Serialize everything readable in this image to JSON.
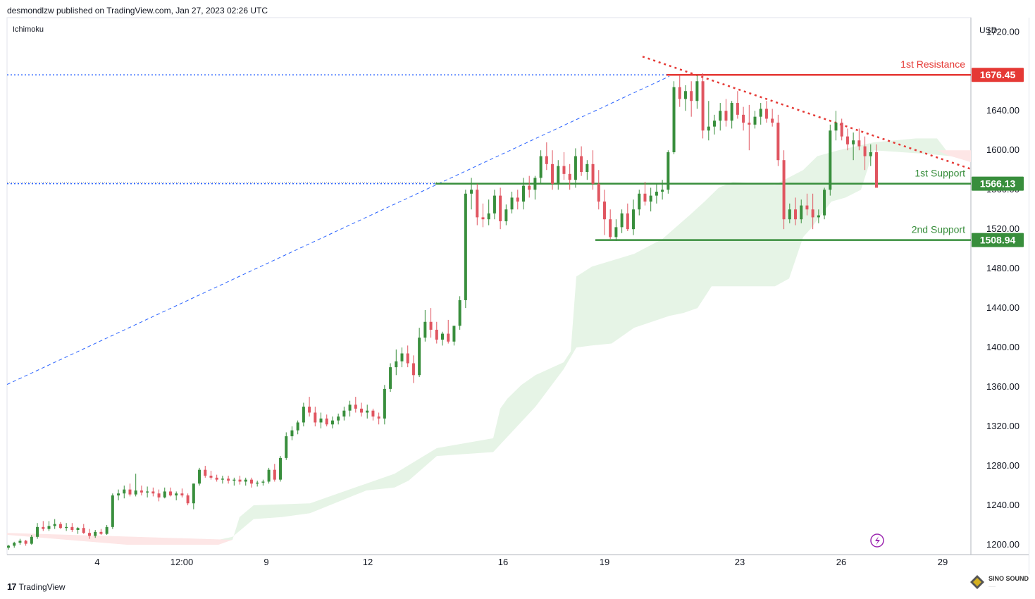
{
  "header": {
    "publisher": "desmondlzw published on TradingView.com, Jan 27, 2023 02:26 UTC"
  },
  "indicator": {
    "name": "Ichimoku"
  },
  "footer": {
    "brand": "TradingView",
    "watermark": "SINO SOUND"
  },
  "colors": {
    "up": "#388e3c",
    "down": "#e05560",
    "resistance": "#e53935",
    "support": "#388e3c",
    "trendline": "#2962ff",
    "cloud_bull": "#e6f4e6",
    "cloud_bear": "#fde6e6"
  },
  "chart_data": {
    "type": "candlestick",
    "symbol_currency": "USD",
    "ylim": [
      1190,
      1735
    ],
    "y_ticks": [
      1720.0,
      1680.0,
      1640.0,
      1600.0,
      1560.0,
      1520.0,
      1480.0,
      1440.0,
      1400.0,
      1360.0,
      1320.0,
      1280.0,
      1240.0,
      1200.0
    ],
    "x_tick_labels": [
      "4",
      "12:00",
      "9",
      "12",
      "16",
      "19",
      "23",
      "26",
      "29"
    ],
    "levels": [
      {
        "name": "1st Resistance",
        "value": 1676.45,
        "color": "#e53935"
      },
      {
        "name": "1st Support",
        "value": 1566.13,
        "color": "#388e3c"
      },
      {
        "name": "2nd Support",
        "value": 1508.94,
        "color": "#388e3c"
      }
    ],
    "candles": [
      [
        1197,
        1200,
        1195,
        1199
      ],
      [
        1199,
        1203,
        1197,
        1202
      ],
      [
        1202,
        1206,
        1200,
        1204
      ],
      [
        1204,
        1205,
        1199,
        1201
      ],
      [
        1201,
        1210,
        1200,
        1208
      ],
      [
        1208,
        1222,
        1206,
        1218
      ],
      [
        1218,
        1224,
        1214,
        1216
      ],
      [
        1216,
        1224,
        1214,
        1219
      ],
      [
        1219,
        1226,
        1216,
        1221
      ],
      [
        1221,
        1223,
        1216,
        1217
      ],
      [
        1217,
        1222,
        1214,
        1218
      ],
      [
        1218,
        1222,
        1213,
        1215
      ],
      [
        1215,
        1218,
        1211,
        1217
      ],
      [
        1217,
        1221,
        1211,
        1212
      ],
      [
        1212,
        1216,
        1206,
        1209
      ],
      [
        1209,
        1215,
        1207,
        1213
      ],
      [
        1213,
        1216,
        1210,
        1211
      ],
      [
        1211,
        1220,
        1210,
        1218
      ],
      [
        1218,
        1252,
        1216,
        1250
      ],
      [
        1250,
        1256,
        1245,
        1252
      ],
      [
        1252,
        1260,
        1247,
        1256
      ],
      [
        1256,
        1262,
        1249,
        1251
      ],
      [
        1251,
        1272,
        1249,
        1255
      ],
      [
        1255,
        1260,
        1250,
        1253
      ],
      [
        1253,
        1259,
        1248,
        1254
      ],
      [
        1254,
        1258,
        1249,
        1252
      ],
      [
        1252,
        1256,
        1244,
        1248
      ],
      [
        1248,
        1258,
        1247,
        1254
      ],
      [
        1254,
        1258,
        1249,
        1250
      ],
      [
        1250,
        1254,
        1245,
        1252
      ],
      [
        1252,
        1257,
        1248,
        1250
      ],
      [
        1250,
        1252,
        1240,
        1242
      ],
      [
        1242,
        1262,
        1236,
        1262
      ],
      [
        1262,
        1278,
        1260,
        1276
      ],
      [
        1276,
        1280,
        1268,
        1270
      ],
      [
        1270,
        1275,
        1266,
        1268
      ],
      [
        1268,
        1271,
        1264,
        1266
      ],
      [
        1266,
        1270,
        1262,
        1267
      ],
      [
        1267,
        1270,
        1262,
        1265
      ],
      [
        1265,
        1268,
        1260,
        1266
      ],
      [
        1266,
        1270,
        1261,
        1264
      ],
      [
        1264,
        1268,
        1260,
        1266
      ],
      [
        1266,
        1268,
        1258,
        1262
      ],
      [
        1262,
        1265,
        1259,
        1263
      ],
      [
        1263,
        1266,
        1260,
        1264
      ],
      [
        1264,
        1278,
        1262,
        1276
      ],
      [
        1276,
        1282,
        1264,
        1266
      ],
      [
        1266,
        1290,
        1264,
        1288
      ],
      [
        1288,
        1314,
        1286,
        1310
      ],
      [
        1310,
        1320,
        1306,
        1316
      ],
      [
        1316,
        1326,
        1312,
        1324
      ],
      [
        1324,
        1344,
        1320,
        1340
      ],
      [
        1340,
        1350,
        1330,
        1334
      ],
      [
        1334,
        1340,
        1320,
        1324
      ],
      [
        1324,
        1334,
        1318,
        1328
      ],
      [
        1328,
        1332,
        1320,
        1322
      ],
      [
        1322,
        1330,
        1318,
        1326
      ],
      [
        1326,
        1333,
        1322,
        1330
      ],
      [
        1330,
        1340,
        1326,
        1336
      ],
      [
        1336,
        1346,
        1330,
        1342
      ],
      [
        1342,
        1350,
        1334,
        1338
      ],
      [
        1338,
        1344,
        1330,
        1334
      ],
      [
        1334,
        1342,
        1328,
        1336
      ],
      [
        1336,
        1338,
        1326,
        1330
      ],
      [
        1330,
        1334,
        1322,
        1328
      ],
      [
        1328,
        1362,
        1322,
        1358
      ],
      [
        1358,
        1384,
        1355,
        1380
      ],
      [
        1380,
        1398,
        1372,
        1386
      ],
      [
        1386,
        1400,
        1380,
        1394
      ],
      [
        1394,
        1402,
        1380,
        1384
      ],
      [
        1384,
        1392,
        1364,
        1372
      ],
      [
        1372,
        1420,
        1370,
        1410
      ],
      [
        1410,
        1438,
        1406,
        1426
      ],
      [
        1426,
        1440,
        1410,
        1418
      ],
      [
        1418,
        1426,
        1404,
        1408
      ],
      [
        1408,
        1416,
        1402,
        1414
      ],
      [
        1414,
        1428,
        1404,
        1406
      ],
      [
        1406,
        1422,
        1402,
        1422
      ],
      [
        1422,
        1452,
        1418,
        1448
      ],
      [
        1448,
        1560,
        1440,
        1556
      ],
      [
        1556,
        1572,
        1540,
        1560
      ],
      [
        1560,
        1566,
        1524,
        1532
      ],
      [
        1532,
        1546,
        1522,
        1530
      ],
      [
        1530,
        1550,
        1524,
        1536
      ],
      [
        1536,
        1560,
        1530,
        1554
      ],
      [
        1554,
        1562,
        1520,
        1528
      ],
      [
        1528,
        1545,
        1524,
        1540
      ],
      [
        1540,
        1558,
        1536,
        1552
      ],
      [
        1552,
        1560,
        1540,
        1548
      ],
      [
        1548,
        1572,
        1540,
        1564
      ],
      [
        1564,
        1574,
        1552,
        1560
      ],
      [
        1560,
        1574,
        1550,
        1572
      ],
      [
        1572,
        1600,
        1566,
        1594
      ],
      [
        1594,
        1608,
        1580,
        1586
      ],
      [
        1586,
        1600,
        1560,
        1566
      ],
      [
        1566,
        1590,
        1560,
        1584
      ],
      [
        1584,
        1598,
        1570,
        1576
      ],
      [
        1576,
        1586,
        1560,
        1570
      ],
      [
        1570,
        1602,
        1562,
        1594
      ],
      [
        1594,
        1604,
        1574,
        1578
      ],
      [
        1578,
        1590,
        1570,
        1586
      ],
      [
        1586,
        1600,
        1560,
        1566
      ],
      [
        1566,
        1580,
        1540,
        1548
      ],
      [
        1548,
        1560,
        1514,
        1530
      ],
      [
        1530,
        1540,
        1510,
        1512
      ],
      [
        1512,
        1530,
        1508,
        1522
      ],
      [
        1522,
        1540,
        1516,
        1536
      ],
      [
        1536,
        1546,
        1518,
        1520
      ],
      [
        1520,
        1550,
        1514,
        1540
      ],
      [
        1540,
        1560,
        1534,
        1556
      ],
      [
        1556,
        1568,
        1544,
        1548
      ],
      [
        1548,
        1562,
        1538,
        1554
      ],
      [
        1554,
        1566,
        1546,
        1558
      ],
      [
        1558,
        1570,
        1550,
        1560
      ],
      [
        1560,
        1600,
        1556,
        1598
      ],
      [
        1598,
        1670,
        1596,
        1664
      ],
      [
        1664,
        1676,
        1644,
        1652
      ],
      [
        1652,
        1666,
        1640,
        1660
      ],
      [
        1660,
        1670,
        1634,
        1650
      ],
      [
        1650,
        1676,
        1642,
        1670
      ],
      [
        1670,
        1678,
        1612,
        1620
      ],
      [
        1620,
        1650,
        1610,
        1624
      ],
      [
        1624,
        1636,
        1616,
        1630
      ],
      [
        1630,
        1648,
        1620,
        1640
      ],
      [
        1640,
        1652,
        1624,
        1630
      ],
      [
        1630,
        1650,
        1622,
        1648
      ],
      [
        1648,
        1660,
        1632,
        1636
      ],
      [
        1636,
        1644,
        1620,
        1628
      ],
      [
        1628,
        1646,
        1600,
        1626
      ],
      [
        1626,
        1640,
        1622,
        1634
      ],
      [
        1634,
        1648,
        1626,
        1642
      ],
      [
        1642,
        1650,
        1628,
        1632
      ],
      [
        1632,
        1642,
        1624,
        1628
      ],
      [
        1628,
        1636,
        1584,
        1590
      ],
      [
        1590,
        1600,
        1520,
        1530
      ],
      [
        1530,
        1546,
        1526,
        1540
      ],
      [
        1540,
        1552,
        1524,
        1530
      ],
      [
        1530,
        1550,
        1526,
        1544
      ],
      [
        1544,
        1556,
        1534,
        1540
      ],
      [
        1540,
        1556,
        1520,
        1532
      ],
      [
        1532,
        1540,
        1526,
        1534
      ],
      [
        1534,
        1562,
        1530,
        1560
      ],
      [
        1560,
        1626,
        1554,
        1620
      ],
      [
        1620,
        1640,
        1610,
        1628
      ],
      [
        1628,
        1632,
        1610,
        1614
      ],
      [
        1614,
        1622,
        1600,
        1606
      ],
      [
        1606,
        1618,
        1590,
        1610
      ],
      [
        1610,
        1622,
        1600,
        1604
      ],
      [
        1604,
        1614,
        1580,
        1594
      ],
      [
        1594,
        1606,
        1584,
        1598
      ],
      [
        1598,
        1606,
        1564,
        1562
      ]
    ]
  }
}
